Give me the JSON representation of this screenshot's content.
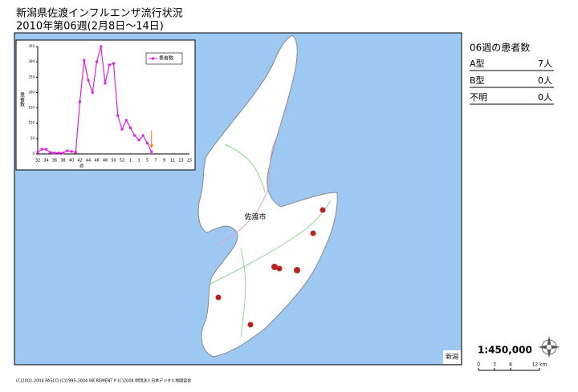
{
  "title": "新潟県佐渡インフルエンザ流行状況",
  "subtitle": "2010年第06週(2月8日〜14日)",
  "panel": {
    "title": "06週の患者数",
    "rows": [
      [
        "A型",
        "7人"
      ],
      [
        "B型",
        "0人"
      ],
      [
        "不明",
        "0人"
      ]
    ]
  },
  "map": {
    "city_label": "佐渡市",
    "corner_label": "新潟",
    "scale_ratio": "1:450,000",
    "scale_ticks": [
      "0",
      "3",
      "6",
      "12 km"
    ],
    "copyright": "(C)2002-2004 PASCO (C)1995-2004 INCREMENT P (C)2004 財団法人日本デジタル地図協会"
  },
  "chart_data": {
    "type": "line",
    "x_label": "週",
    "y_label": "患者数",
    "categories": [
      "32",
      null,
      "34",
      null,
      "36",
      null,
      "38",
      null,
      "40",
      null,
      "42",
      null,
      "44",
      null,
      "46",
      null,
      "48",
      null,
      "50",
      null,
      "52",
      null,
      "1",
      null,
      "3",
      null,
      "5",
      null,
      "7",
      null,
      "9",
      null,
      "11",
      null,
      "13",
      null,
      "15"
    ],
    "series": [
      {
        "name": "患者数",
        "color": "#e020e0",
        "values": [
          5,
          15,
          15,
          5,
          3,
          3,
          3,
          10,
          8,
          5,
          170,
          305,
          240,
          200,
          300,
          350,
          230,
          290,
          295,
          125,
          80,
          110,
          85,
          60,
          45,
          60,
          35,
          7,
          null,
          null,
          null,
          null,
          null,
          null,
          null,
          null,
          null
        ]
      }
    ],
    "ylim": [
      0,
      350
    ],
    "yticks": [
      0,
      50,
      100,
      150,
      200,
      250,
      300,
      350
    ],
    "legend": "upper right"
  }
}
